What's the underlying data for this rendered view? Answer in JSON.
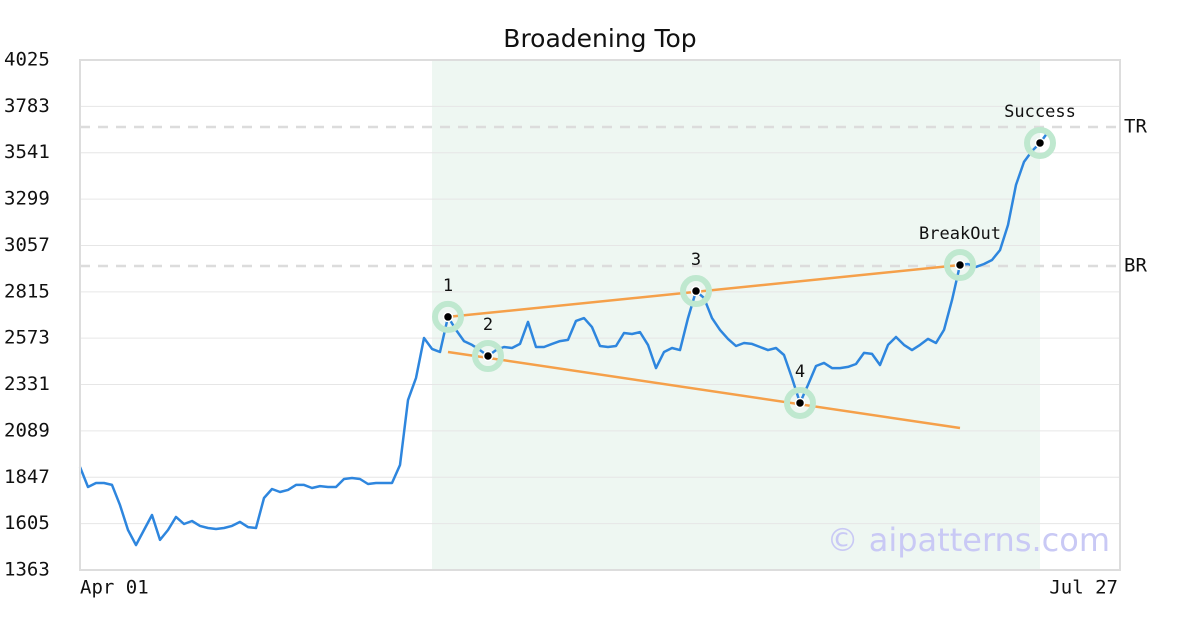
{
  "chart_data": {
    "type": "line",
    "title": "Broadening Top",
    "watermark": "© aipatterns.com",
    "color": "#2e86de",
    "categories": [
      "Apr 01",
      null,
      null,
      null,
      null,
      null,
      null,
      null,
      null,
      null,
      null,
      null,
      null,
      null,
      null,
      null,
      null,
      null,
      null,
      null,
      null,
      null,
      null,
      null,
      null,
      null,
      null,
      null,
      null,
      null,
      null,
      null,
      null,
      null,
      null,
      null,
      null,
      null,
      null,
      null,
      null,
      null,
      null,
      null,
      null,
      null,
      null,
      null,
      null,
      null,
      null,
      null,
      null,
      null,
      null,
      null,
      null,
      null,
      null,
      null,
      null,
      null,
      null,
      null,
      null,
      null,
      null,
      null,
      null,
      null,
      null,
      null,
      null,
      null,
      null,
      null,
      null,
      null,
      null,
      null,
      null,
      null,
      null,
      null,
      null,
      null,
      null,
      null,
      null,
      null,
      null,
      null,
      null,
      null,
      null,
      null,
      null,
      null,
      null,
      null,
      null,
      null,
      null,
      null,
      null,
      null,
      null,
      null,
      null,
      null,
      null,
      null,
      null,
      null,
      null,
      null,
      null,
      null,
      null,
      null,
      null,
      null,
      null,
      null,
      null,
      null,
      null,
      null,
      null,
      null,
      "Jul 27"
    ],
    "values": [
      1901,
      1796,
      1817,
      1817,
      1807,
      1702,
      1572,
      1493,
      1572,
      1650,
      1520,
      1572,
      1640,
      1603,
      1619,
      1593,
      1582,
      1577,
      1582,
      1593,
      1614,
      1587,
      1582,
      1739,
      1786,
      1770,
      1781,
      1807,
      1807,
      1791,
      1801,
      1796,
      1796,
      1838,
      1843,
      1838,
      1812,
      1817,
      1817,
      1817,
      1911,
      2250,
      2365,
      2574,
      2517,
      2501,
      2684,
      2616,
      2558,
      2538,
      2511,
      2480,
      2511,
      2527,
      2522,
      2543,
      2658,
      2527,
      2527,
      2543,
      2558,
      2564,
      2663,
      2678,
      2631,
      2532,
      2527,
      2532,
      2600,
      2595,
      2605,
      2538,
      2417,
      2501,
      2522,
      2511,
      2678,
      2819,
      2783,
      2678,
      2616,
      2569,
      2532,
      2548,
      2543,
      2527,
      2511,
      2522,
      2485,
      2365,
      2235,
      2329,
      2428,
      2444,
      2417,
      2417,
      2423,
      2438,
      2496,
      2491,
      2433,
      2538,
      2579,
      2538,
      2511,
      2538,
      2569,
      2548,
      2616,
      2772,
      2955,
      2960,
      2945,
      2960,
      2981,
      3033,
      3164,
      3373,
      3493,
      3550,
      3592,
      3649,
      null,
      null,
      null,
      null,
      null,
      null,
      null,
      null,
      null
    ],
    "ylim": [
      1363,
      4025
    ],
    "yticks": [
      1363,
      1605,
      1847,
      2089,
      2331,
      2573,
      2815,
      3057,
      3299,
      3541,
      3783,
      4025
    ],
    "grid": true,
    "highlight": {
      "from": 44,
      "to": 120,
      "color": "#eef7f2"
    },
    "levels": [
      {
        "label": "TR",
        "value": 3675
      },
      {
        "label": "BR",
        "value": 2950
      }
    ],
    "trendlines": [
      {
        "color": "#f5a04a",
        "from": 46,
        "to": 110,
        "values": [
          2684,
          2955
        ]
      },
      {
        "color": "#f5a04a",
        "from": 46,
        "to": 110,
        "values": [
          2501,
          2104
        ]
      }
    ],
    "annotations": [
      {
        "label": "1",
        "index": 46
      },
      {
        "label": "2",
        "index": 51
      },
      {
        "label": "3",
        "index": 77
      },
      {
        "label": "4",
        "index": 90
      },
      {
        "label": "BreakOut",
        "index": 110
      },
      {
        "label": "Success",
        "index": 120
      }
    ]
  }
}
